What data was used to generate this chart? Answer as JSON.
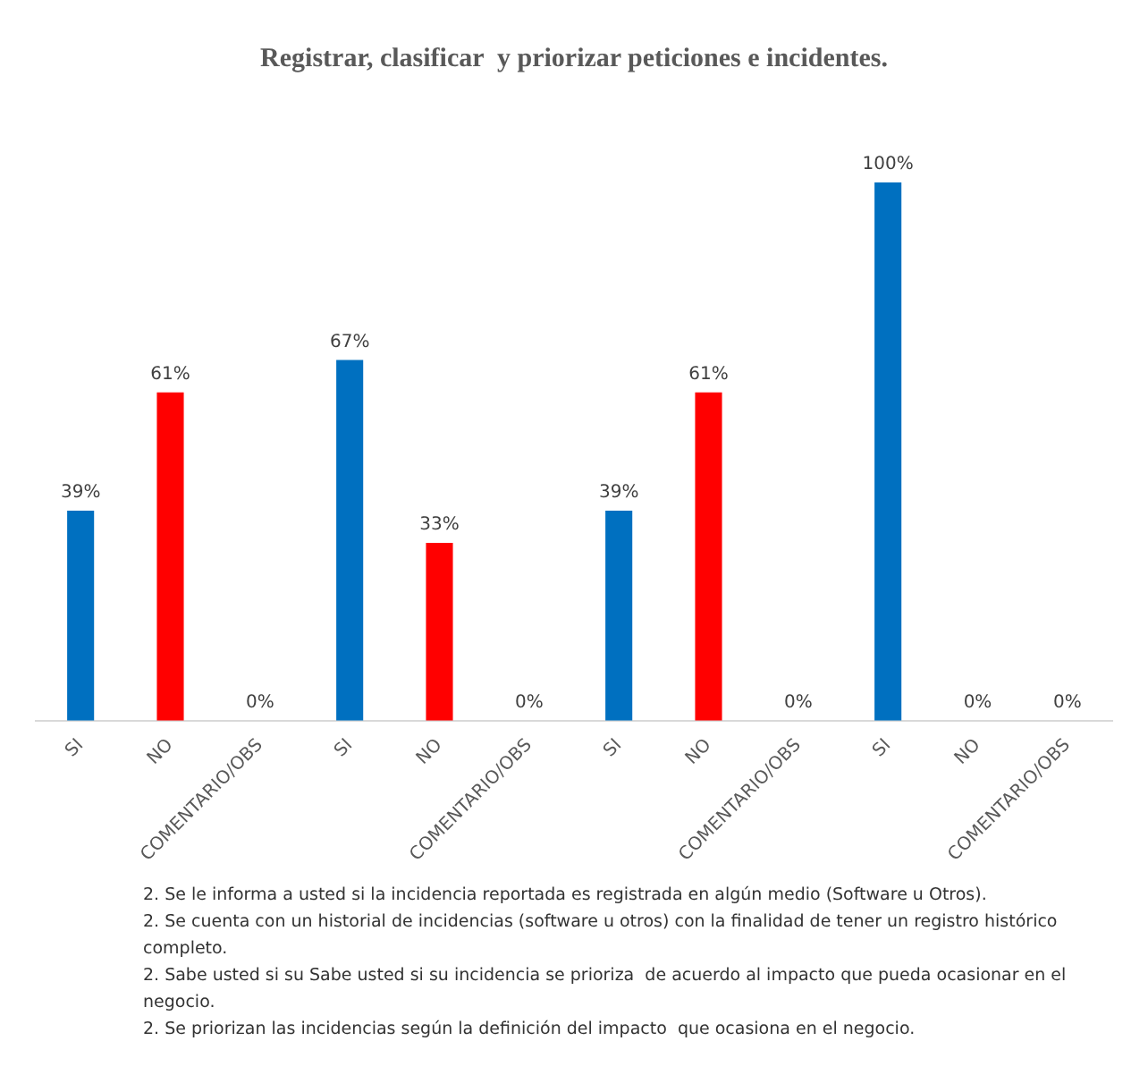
{
  "chart_data": {
    "type": "bar",
    "title": "Registrar, clasificar  y priorizar peticiones e incidentes.",
    "categories": [
      "SI",
      "NO",
      "COMENTARIO/OBS",
      "SI",
      "NO",
      "COMENTARIO/OBS",
      "SI",
      "NO",
      "COMENTARIO/OBS",
      "SI",
      "NO",
      "COMENTARIO/OBS"
    ],
    "values": [
      39,
      61,
      0,
      67,
      33,
      0,
      39,
      61,
      0,
      100,
      0,
      0
    ],
    "colors": [
      "#0070c0",
      "#ff0000",
      "#a5a5a5",
      "#0070c0",
      "#ff0000",
      "#a5a5a5",
      "#0070c0",
      "#ff0000",
      "#a5a5a5",
      "#0070c0",
      "#ff0000",
      "#a5a5a5"
    ],
    "value_labels": [
      "39%",
      "61%",
      "0%",
      "67%",
      "33%",
      "0%",
      "39%",
      "61%",
      "0%",
      "100%",
      "0%",
      "0%"
    ],
    "grid": false,
    "legend": false,
    "annotations": [
      "2. Se le informa a usted si la incidencia reportada es registrada en algún medio (Software u Otros).",
      "2. Se cuenta con un historial de incidencias (software u otros) con la finalidad de tener un registro histórico completo.",
      "2. Sabe usted si su Sabe usted si su incidencia se prioriza  de acuerdo al impacto que pueda ocasionar en el negocio.",
      "2. Se priorizan las incidencias según la definición del impacto  que ocasiona en el negocio."
    ]
  }
}
